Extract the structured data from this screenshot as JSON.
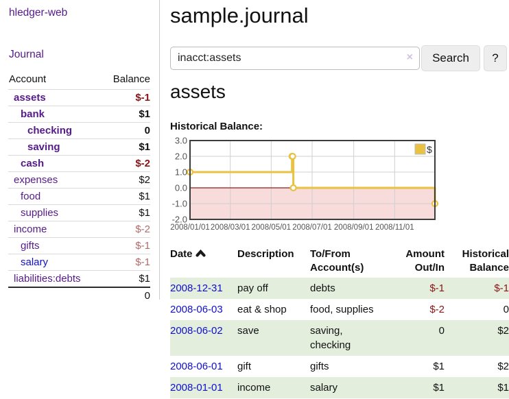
{
  "colors": {
    "link-purple": "#551a8b",
    "link-blue": "#0f0fd0",
    "neg-strong": "#8b1414",
    "neg-soft": "#b36a6a",
    "row-green": "#e3eedd",
    "series-gold": "#e8c240",
    "neg-region-pink": "#f8dbdb",
    "zero-line-red": "#8b1a1a"
  },
  "sidebar": {
    "app_title": "hledger-web",
    "journal_label": "Journal",
    "table": {
      "headers": [
        "Account",
        "Balance"
      ],
      "rows": [
        {
          "account": "assets",
          "balance": "$-1",
          "level": 1,
          "bold": true,
          "balance_class": "bal-neg-strong"
        },
        {
          "account": "bank",
          "balance": "$1",
          "level": 2,
          "bold": true,
          "balance_class": "bal-pos"
        },
        {
          "account": "checking",
          "balance": "0",
          "level": 3,
          "bold": true,
          "balance_class": "bal-pos"
        },
        {
          "account": "saving",
          "balance": "$1",
          "level": 3,
          "bold": true,
          "balance_class": "bal-pos"
        },
        {
          "account": "cash",
          "balance": "$-2",
          "level": 2,
          "bold": true,
          "balance_class": "bal-neg-strong"
        },
        {
          "account": "expenses",
          "balance": "$2",
          "level": 1,
          "bold": false,
          "balance_class": "bal-pos"
        },
        {
          "account": "food",
          "balance": "$1",
          "level": 2,
          "bold": false,
          "balance_class": "bal-pos"
        },
        {
          "account": "supplies",
          "balance": "$1",
          "level": 2,
          "bold": false,
          "balance_class": "bal-pos"
        },
        {
          "account": "income",
          "balance": "$-2",
          "level": 1,
          "bold": false,
          "balance_class": "bal-neg-soft"
        },
        {
          "account": "gifts",
          "balance": "$-1",
          "level": 2,
          "bold": false,
          "balance_class": "bal-neg-soft"
        },
        {
          "account": "salary",
          "balance": "$-1",
          "level": 2,
          "bold": false,
          "balance_class": "bal-neg-soft",
          "link_blue": true
        },
        {
          "account": "liabilities:debts",
          "balance": "$1",
          "level": 1,
          "bold": false,
          "balance_class": "bal-pos"
        }
      ],
      "total": "0"
    }
  },
  "header": {
    "title": "sample.journal"
  },
  "search": {
    "query": "inacct:assets",
    "clear_icon": "×",
    "button_label": "Search",
    "help_label": "?"
  },
  "account_page": {
    "heading": "assets",
    "chart_title": "Historical Balance:"
  },
  "chart_data": {
    "type": "line",
    "step": true,
    "title": "Historical Balance:",
    "series": [
      {
        "name": "$",
        "color": "#e8c240",
        "points": [
          [
            "2008-01-01",
            1
          ],
          [
            "2008-06-01",
            2
          ],
          [
            "2008-06-02",
            2
          ],
          [
            "2008-06-03",
            0
          ],
          [
            "2008-12-31",
            -1
          ]
        ]
      }
    ],
    "ylim": [
      -2,
      3
    ],
    "ytick_values": [
      3,
      2,
      1,
      0,
      -1,
      -2
    ],
    "ytick_labels": [
      "3.0",
      "2.0",
      "1.0",
      "0.0",
      "-1.0",
      "-2.0"
    ],
    "xlim": [
      "2008-01-01",
      "2008-12-31"
    ],
    "xticks": [
      {
        "label": "2008/01/01",
        "date": "2008-01-01"
      },
      {
        "label": "2008/03/01",
        "date": "2008-03-01"
      },
      {
        "label": "2008/05/01",
        "date": "2008-05-01"
      },
      {
        "label": "2008/07/01",
        "date": "2008-07-01"
      },
      {
        "label": "2008/09/01",
        "date": "2008-09-01"
      },
      {
        "label": "2008/11/01",
        "date": "2008-11-01"
      }
    ],
    "legend_position": "top-right",
    "grid": true,
    "negative_region_shaded": true
  },
  "register": {
    "columns": [
      {
        "label": "Date",
        "sortable": true
      },
      {
        "label": "Description"
      },
      {
        "label": "To/From Account(s)"
      },
      {
        "label": "Amount Out/In",
        "align": "right"
      },
      {
        "label": "Historical Balance",
        "align": "right"
      }
    ],
    "rows": [
      {
        "date": "2008-12-31",
        "description": "pay off",
        "accounts": "debts",
        "amount": "$-1",
        "balance": "$-1",
        "amount_neg": true,
        "balance_neg": true,
        "green": true
      },
      {
        "date": "2008-06-03",
        "description": "eat & shop",
        "accounts": "food, supplies",
        "amount": "$-2",
        "balance": "0",
        "amount_neg": true,
        "balance_neg": false,
        "green": false
      },
      {
        "date": "2008-06-02",
        "description": "save",
        "accounts": "saving, checking",
        "amount": "0",
        "balance": "$2",
        "amount_neg": false,
        "balance_neg": false,
        "green": true
      },
      {
        "date": "2008-06-01",
        "description": "gift",
        "accounts": "gifts",
        "amount": "$1",
        "balance": "$2",
        "amount_neg": false,
        "balance_neg": false,
        "green": false
      },
      {
        "date": "2008-01-01",
        "description": "income",
        "accounts": "salary",
        "amount": "$1",
        "balance": "$1",
        "amount_neg": false,
        "balance_neg": false,
        "green": true
      }
    ]
  }
}
